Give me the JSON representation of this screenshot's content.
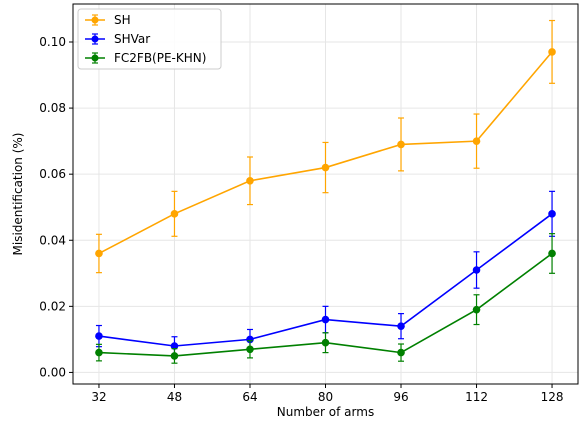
{
  "chart_data": {
    "type": "line",
    "title": "",
    "xlabel": "Number of arms",
    "ylabel": "Misidentification (%)",
    "x": [
      32,
      48,
      64,
      80,
      96,
      112,
      128
    ],
    "xlim": [
      26.5,
      133.5
    ],
    "ylim": [
      -0.0035,
      0.1115
    ],
    "yticks": [
      0.0,
      0.02,
      0.04,
      0.06,
      0.08,
      0.1
    ],
    "ytick_labels": [
      "0.00",
      "0.02",
      "0.04",
      "0.06",
      "0.08",
      "0.10"
    ],
    "xtick_labels": [
      "32",
      "48",
      "64",
      "80",
      "96",
      "112",
      "128"
    ],
    "grid": true,
    "legend_position": "upper-left",
    "series": [
      {
        "name": "SH",
        "color": "#ffa500",
        "values": [
          0.036,
          0.048,
          0.058,
          0.062,
          0.069,
          0.07,
          0.097
        ],
        "errors": [
          0.0058,
          0.0068,
          0.0072,
          0.0076,
          0.008,
          0.0082,
          0.0095
        ]
      },
      {
        "name": "SHVar",
        "color": "#0000ff",
        "values": [
          0.011,
          0.008,
          0.01,
          0.016,
          0.014,
          0.031,
          0.048
        ],
        "errors": [
          0.0032,
          0.0028,
          0.003,
          0.004,
          0.0038,
          0.0055,
          0.0068
        ]
      },
      {
        "name": "FC2FB(PE-KHN)",
        "color": "#008000",
        "values": [
          0.006,
          0.005,
          0.007,
          0.009,
          0.006,
          0.019,
          0.036
        ],
        "errors": [
          0.0025,
          0.0022,
          0.0026,
          0.003,
          0.0026,
          0.0045,
          0.006
        ]
      }
    ]
  }
}
